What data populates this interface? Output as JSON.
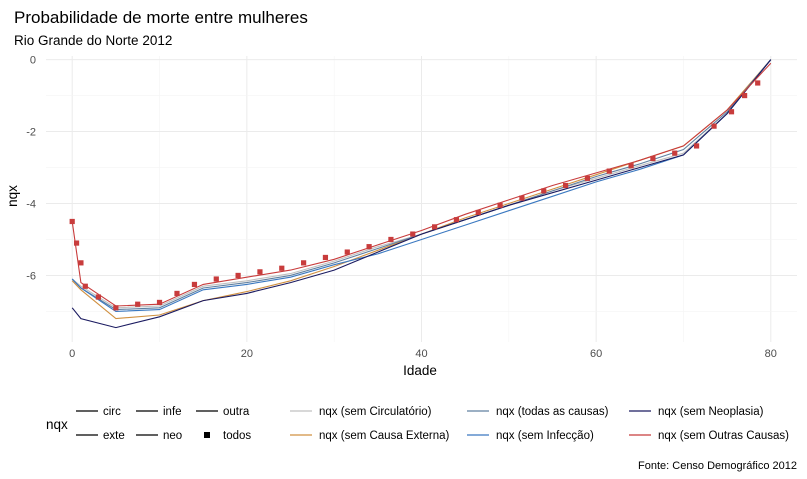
{
  "chart_data": {
    "type": "line",
    "title": "Probabilidade de morte entre mulheres",
    "subtitle": "Rio Grande do Norte 2012",
    "xlabel": "Idade",
    "ylabel": "nqx",
    "caption": "Fonte: Censo Demográfico 2012",
    "xlim": [
      -3,
      83
    ],
    "ylim": [
      -7.85,
      0.1
    ],
    "x_ticks": [
      0,
      20,
      40,
      60,
      80
    ],
    "y_ticks": [
      0,
      -2,
      -4,
      -6
    ],
    "x_tick_labels": [
      "0",
      "20",
      "40",
      "60",
      "80"
    ],
    "y_tick_labels": [
      "0",
      "-2",
      "-4",
      "-6"
    ],
    "grid": true,
    "legend": {
      "title": "nqx",
      "position": "bottom",
      "linetype_items": [
        "circ",
        "exte",
        "infe",
        "neo",
        "outra",
        "todos"
      ],
      "color_items": [
        {
          "label": "nqx (sem Circulatório)",
          "color": "#c0c0c0"
        },
        {
          "label": "nqx (sem Causa Externa)",
          "color": "#d09040"
        },
        {
          "label": "nqx (todas as causas)",
          "color": "#6080a0"
        },
        {
          "label": "nqx (sem Infecção)",
          "color": "#3a78c0"
        },
        {
          "label": "nqx (sem Neoplasia)",
          "color": "#1a1a60"
        },
        {
          "label": "nqx (sem Outras Causas)",
          "color": "#c83c3c"
        }
      ]
    },
    "series": [
      {
        "name": "nqx (sem Circulatório)",
        "color": "#c0c0c0",
        "x": [
          0,
          1,
          5,
          10,
          15,
          20,
          25,
          30,
          35,
          40,
          45,
          50,
          55,
          60,
          65,
          70,
          75,
          80
        ],
        "y": [
          -6.1,
          -6.3,
          -6.9,
          -6.85,
          -6.3,
          -6.15,
          -5.95,
          -5.6,
          -5.2,
          -4.85,
          -4.45,
          -4.05,
          -3.65,
          -3.3,
          -2.95,
          -2.6,
          -1.5,
          0
        ]
      },
      {
        "name": "nqx (sem Causa Externa)",
        "color": "#d09040",
        "x": [
          0,
          1,
          5,
          10,
          15,
          20,
          25,
          30,
          35,
          40,
          45,
          50,
          55,
          60,
          65,
          70,
          75,
          80
        ],
        "y": [
          -6.15,
          -6.4,
          -7.2,
          -7.1,
          -6.7,
          -6.45,
          -6.15,
          -5.75,
          -5.3,
          -4.85,
          -4.4,
          -4.0,
          -3.6,
          -3.2,
          -2.8,
          -2.4,
          -1.4,
          0
        ]
      },
      {
        "name": "nqx (todas as causas)",
        "color": "#6080a0",
        "x": [
          0,
          1,
          5,
          10,
          15,
          20,
          25,
          30,
          35,
          40,
          45,
          50,
          55,
          60,
          65,
          70,
          75,
          80
        ],
        "y": [
          -6.1,
          -6.35,
          -6.95,
          -6.9,
          -6.35,
          -6.2,
          -6.0,
          -5.65,
          -5.25,
          -4.85,
          -4.45,
          -4.05,
          -3.65,
          -3.25,
          -2.9,
          -2.5,
          -1.45,
          0
        ]
      },
      {
        "name": "nqx (sem Infecção)",
        "color": "#3a78c0",
        "x": [
          0,
          1,
          5,
          10,
          15,
          20,
          25,
          30,
          35,
          40,
          45,
          50,
          55,
          60,
          65,
          70,
          75,
          80
        ],
        "y": [
          -6.1,
          -6.35,
          -7.0,
          -6.95,
          -6.4,
          -6.25,
          -6.05,
          -5.7,
          -5.4,
          -5.0,
          -4.6,
          -4.2,
          -3.8,
          -3.4,
          -3.05,
          -2.65,
          -1.5,
          0
        ]
      },
      {
        "name": "nqx (sem Neoplasia)",
        "color": "#1a1a60",
        "x": [
          0,
          1,
          5,
          10,
          15,
          20,
          25,
          30,
          35,
          40,
          45,
          50,
          55,
          60,
          65,
          70,
          75,
          80
        ],
        "y": [
          -6.9,
          -7.2,
          -7.45,
          -7.15,
          -6.7,
          -6.5,
          -6.2,
          -5.85,
          -5.35,
          -4.85,
          -4.45,
          -4.05,
          -3.7,
          -3.35,
          -3.0,
          -2.65,
          -1.5,
          0
        ]
      },
      {
        "name": "nqx (sem Outras Causas)",
        "color": "#c83c3c",
        "x": [
          0,
          1,
          5,
          10,
          15,
          20,
          25,
          30,
          35,
          40,
          45,
          50,
          55,
          60,
          65,
          70,
          75,
          80
        ],
        "y": [
          -4.5,
          -6.2,
          -6.85,
          -6.8,
          -6.25,
          -6.05,
          -5.85,
          -5.55,
          -5.15,
          -4.75,
          -4.3,
          -3.9,
          -3.5,
          -3.15,
          -2.8,
          -2.4,
          -1.4,
          -0.1
        ]
      },
      {
        "name": "todos",
        "color": "#c83c3c",
        "marker": "square",
        "x": [
          0,
          0.5,
          1,
          1.5,
          3,
          5,
          7.5,
          10,
          12,
          14,
          16.5,
          19,
          21.5,
          24,
          26.5,
          29,
          31.5,
          34,
          36.5,
          39,
          41.5,
          44,
          46.5,
          49,
          51.5,
          54,
          56.5,
          59,
          61.5,
          64,
          66.5,
          69,
          71.5,
          73.5,
          75.5,
          77,
          78.5
        ],
        "y": [
          -4.5,
          -5.1,
          -5.65,
          -6.3,
          -6.6,
          -6.9,
          -6.8,
          -6.75,
          -6.5,
          -6.25,
          -6.1,
          -6.0,
          -5.9,
          -5.8,
          -5.65,
          -5.5,
          -5.35,
          -5.2,
          -5.0,
          -4.85,
          -4.65,
          -4.45,
          -4.25,
          -4.05,
          -3.85,
          -3.65,
          -3.5,
          -3.3,
          -3.1,
          -2.95,
          -2.75,
          -2.6,
          -2.4,
          -1.85,
          -1.45,
          -1.0,
          -0.65
        ]
      }
    ]
  }
}
